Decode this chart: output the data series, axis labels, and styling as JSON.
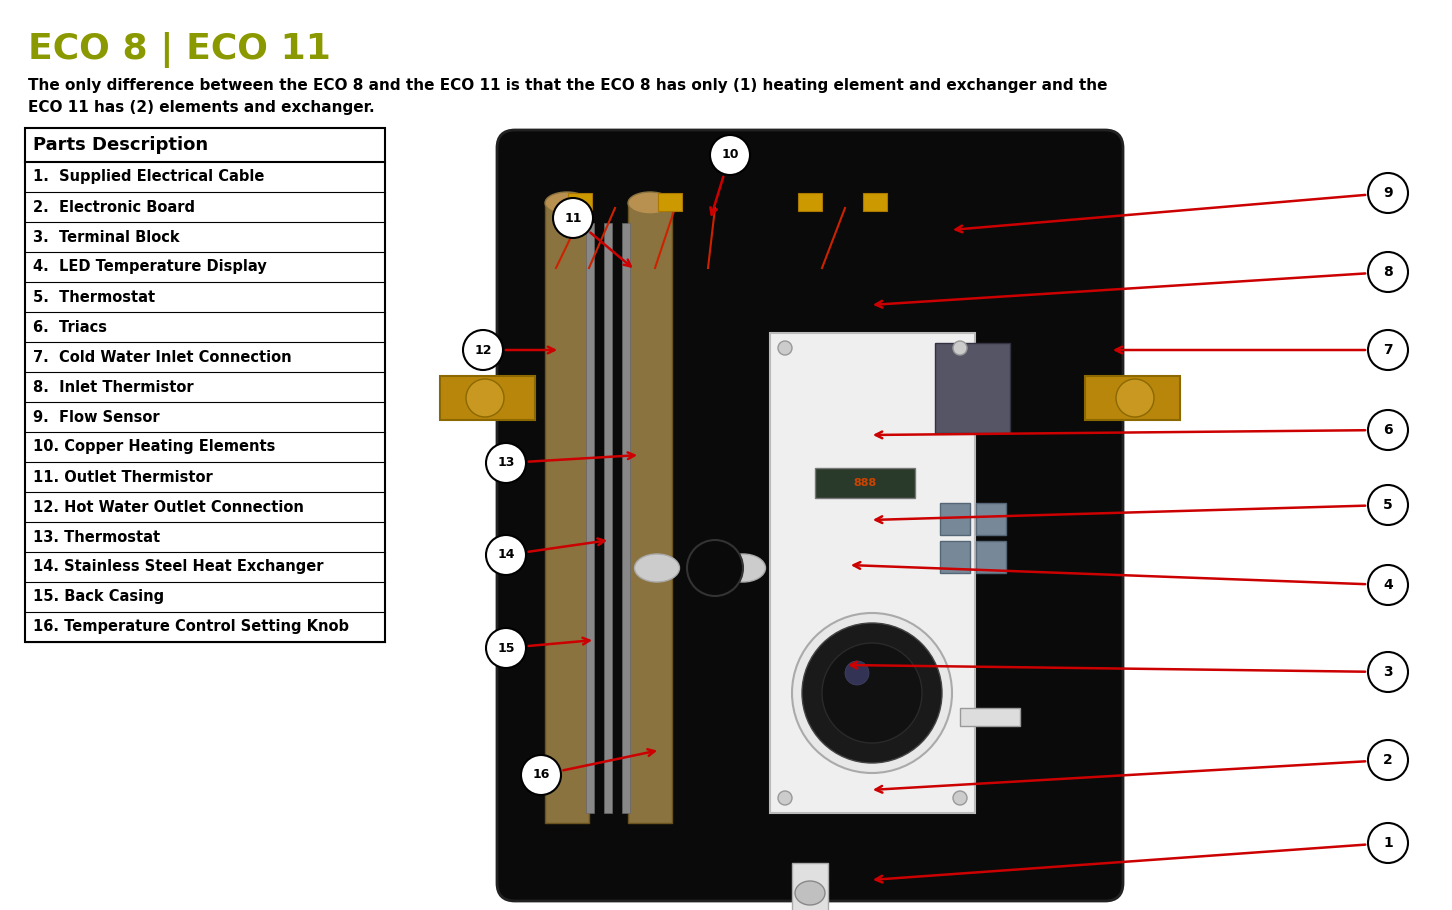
{
  "title": "ECO 8 | ECO 11",
  "title_color": "#8B9900",
  "description_line1": "The only difference between the ECO 8 and the ECO 11 is that the ECO 8 has only (1) heating element and exchanger and the",
  "description_line2": "ECO 11 has (2) elements and exchanger.",
  "table_header": "Parts Description",
  "parts": [
    "1.  Supplied Electrical Cable",
    "2.  Electronic Board",
    "3.  Terminal Block",
    "4.  LED Temperature Display",
    "5.  Thermostat",
    "6.  Triacs",
    "7.  Cold Water Inlet Connection",
    "8.  Inlet Thermistor",
    "9.  Flow Sensor",
    "10. Copper Heating Elements",
    "11. Outlet Thermistor",
    "12. Hot Water Outlet Connection",
    "13. Thermostat",
    "14. Stainless Steel Heat Exchanger",
    "15. Back Casing",
    "16. Temperature Control Setting Knob"
  ],
  "bg_color": "#FFFFFF",
  "table_border_color": "#000000",
  "text_color": "#000000",
  "arrow_color": "#CC0000",
  "device_body_color": "#111111",
  "device_edge_color": "#333333",
  "panel_color": "#F0F0F0",
  "brass_color": "#B8860B",
  "tube_color": "#C8A020"
}
